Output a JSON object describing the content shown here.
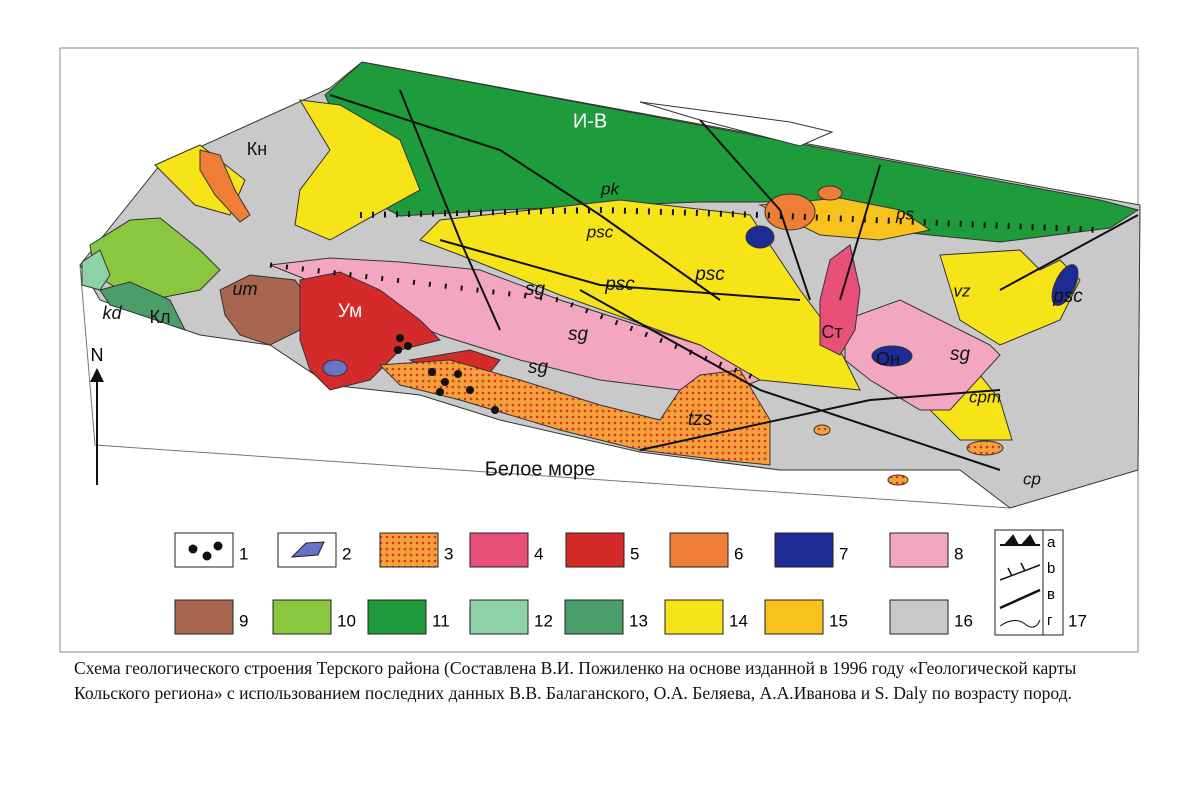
{
  "map": {
    "labels": [
      "Кн",
      "И-В",
      "pk",
      "ps",
      "psc",
      "psc",
      "psc",
      "psc",
      "sg",
      "sg",
      "sg",
      "sg",
      "um",
      "Ум",
      "kd",
      "Кл",
      "Ст",
      "Он",
      "vz",
      "cpm",
      "tzs",
      "Белое море",
      "cp"
    ],
    "north": "N"
  },
  "legend": {
    "items": [
      "1",
      "2",
      "3",
      "4",
      "5",
      "6",
      "7",
      "8",
      "9",
      "10",
      "11",
      "12",
      "13",
      "14",
      "15",
      "16",
      "17"
    ],
    "line_types": [
      "a",
      "b",
      "в",
      "г"
    ]
  },
  "caption": "Схема геологического строения Терского района (Составлена В.И. Пожиленко на основе изданной в 1996 году «Геологической карты Кольского региона» с использованием последних данных В.В. Балаганского, О.А. Беляева, А.А.Иванова и S. Daly по возрасту пород."
}
